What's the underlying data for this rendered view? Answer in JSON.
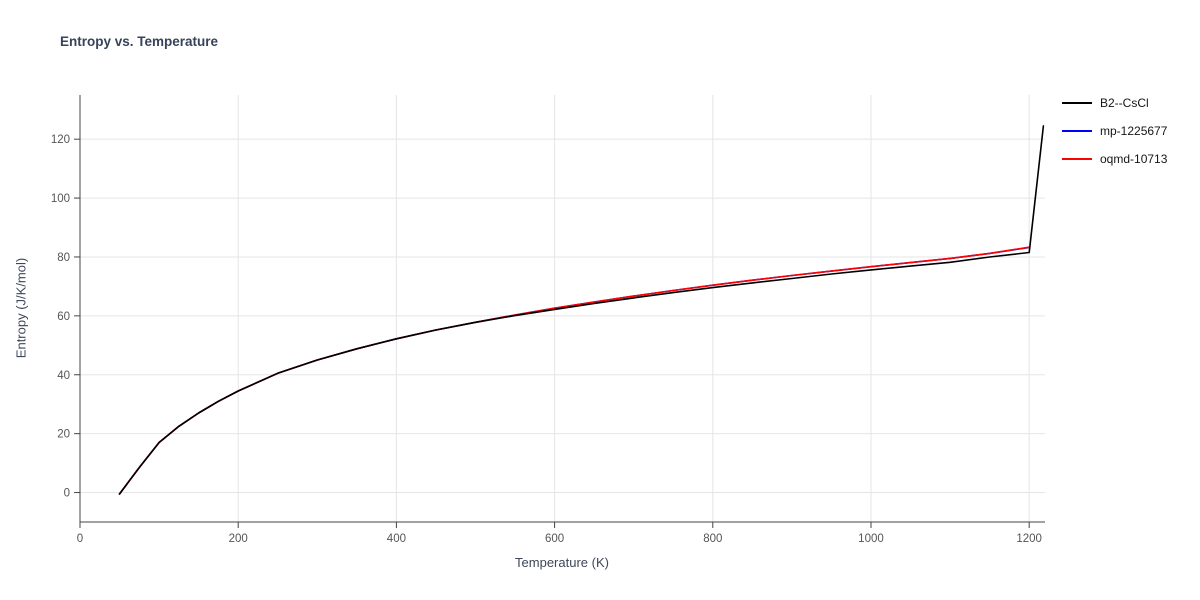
{
  "page": {
    "title": "Entropy vs. Temperature"
  },
  "chart_data": {
    "type": "line",
    "title": "Entropy vs. Temperature",
    "xlabel": "Temperature (K)",
    "ylabel": "Entropy (J/K/mol)",
    "xlim": [
      0,
      1220
    ],
    "ylim": [
      -10,
      135
    ],
    "xticks": [
      0,
      200,
      400,
      600,
      800,
      1000,
      1200
    ],
    "yticks": [
      0,
      20,
      40,
      60,
      80,
      100,
      120
    ],
    "grid": true,
    "legend_position": "top-right",
    "colors": {
      "grid": "#e5e5e5",
      "axis": "#444444",
      "tick_label": "#555555",
      "title": "#37435a"
    },
    "series": [
      {
        "name": "B2--CsCl",
        "color": "#000000",
        "x": [
          50,
          75,
          100,
          125,
          150,
          175,
          200,
          250,
          300,
          350,
          400,
          450,
          500,
          550,
          600,
          650,
          700,
          750,
          800,
          850,
          900,
          950,
          1000,
          1050,
          1100,
          1150,
          1200,
          1218
        ],
        "y": [
          -0.5,
          8.5,
          17.0,
          22.5,
          27.0,
          31.0,
          34.5,
          40.5,
          45.0,
          48.8,
          52.2,
          55.2,
          57.8,
          60.1,
          62.2,
          64.2,
          66.1,
          67.9,
          69.6,
          71.2,
          72.7,
          74.2,
          75.6,
          76.9,
          78.2,
          80.0,
          81.5,
          124.5
        ]
      },
      {
        "name": "mp-1225677",
        "color": "#0000ff",
        "x": [
          50,
          75,
          100,
          125,
          150,
          175,
          200,
          250,
          300,
          350,
          400,
          450,
          500,
          550,
          600,
          650,
          700,
          750,
          800,
          850,
          900,
          950,
          1000,
          1050,
          1100,
          1150,
          1200
        ],
        "y": [
          -0.5,
          8.5,
          17.0,
          22.5,
          27.0,
          31.0,
          34.5,
          40.5,
          45.0,
          48.8,
          52.2,
          55.2,
          57.8,
          60.3,
          62.6,
          64.7,
          66.7,
          68.6,
          70.4,
          72.1,
          73.7,
          75.2,
          76.7,
          78.1,
          79.5,
          81.2,
          83.2
        ]
      },
      {
        "name": "oqmd-10713",
        "color": "#ff0000",
        "x": [
          50,
          75,
          100,
          125,
          150,
          175,
          200,
          250,
          300,
          350,
          400,
          450,
          500,
          550,
          600,
          650,
          700,
          750,
          800,
          850,
          900,
          950,
          1000,
          1050,
          1100,
          1150,
          1200
        ],
        "y": [
          -0.5,
          8.5,
          17.0,
          22.5,
          27.0,
          31.0,
          34.5,
          40.5,
          45.0,
          48.8,
          52.2,
          55.2,
          57.8,
          60.3,
          62.6,
          64.7,
          66.7,
          68.6,
          70.4,
          72.1,
          73.7,
          75.2,
          76.7,
          78.1,
          79.5,
          81.2,
          83.3
        ]
      }
    ]
  }
}
